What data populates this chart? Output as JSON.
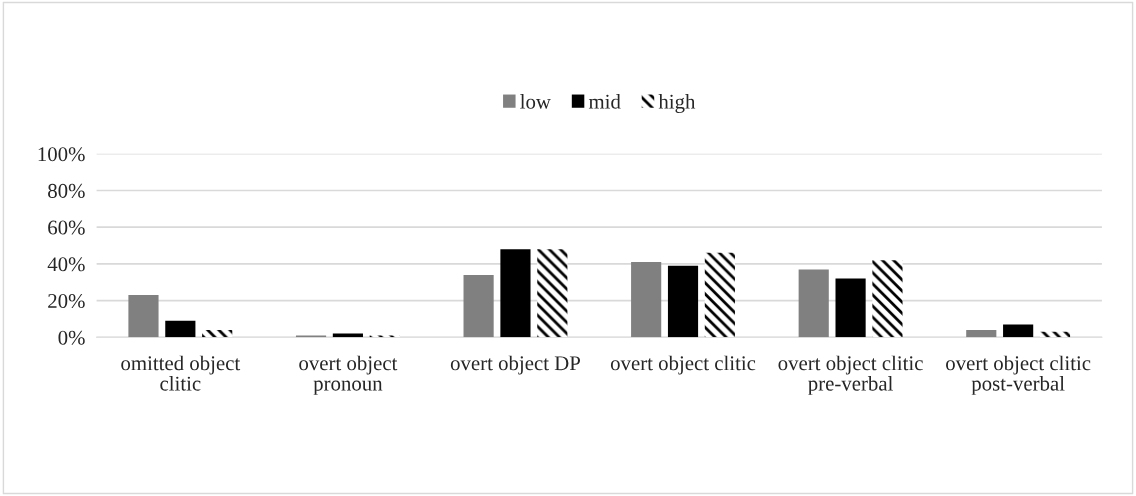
{
  "chart_data": {
    "type": "bar",
    "categories": [
      "omitted object clitic",
      "overt object pronoun",
      "overt object DP",
      "overt object clitic",
      "overt object clitic pre-verbal",
      "overt object clitic post-verbal"
    ],
    "series": [
      {
        "name": "low",
        "color": "#808080",
        "values": [
          23,
          1,
          34,
          41,
          37,
          4
        ]
      },
      {
        "name": "mid",
        "color": "#000000",
        "values": [
          9,
          2,
          48,
          39,
          32,
          7
        ]
      },
      {
        "name": "high",
        "color": "#ffffff",
        "values": [
          4,
          1,
          48,
          46,
          42,
          3
        ]
      }
    ],
    "ylim": [
      0,
      100
    ],
    "yticks": [
      {
        "value": 0,
        "label": "0%"
      },
      {
        "value": 20,
        "label": "20%"
      },
      {
        "value": 40,
        "label": "40%"
      },
      {
        "value": 60,
        "label": "60%"
      },
      {
        "value": 80,
        "label": "80%"
      },
      {
        "value": 100,
        "label": "100%"
      }
    ],
    "grid": "y",
    "legend": "top"
  }
}
